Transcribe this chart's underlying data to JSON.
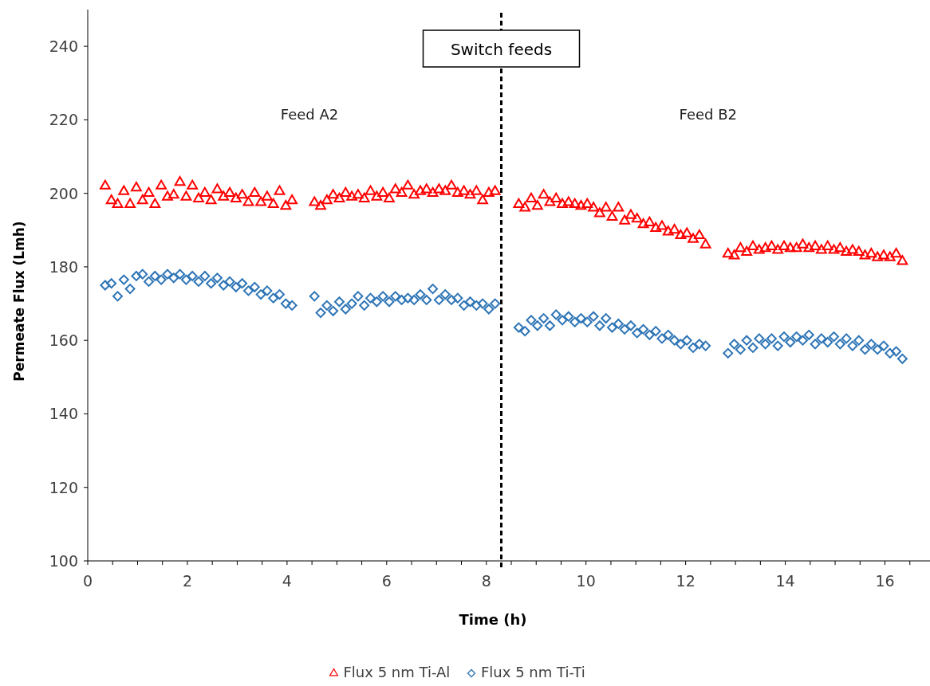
{
  "chart_data": {
    "type": "scatter",
    "xlabel": "Time (h)",
    "ylabel": "Permeate Flux (Lmh)",
    "xlim": [
      0,
      17
    ],
    "ylim": [
      100,
      250
    ],
    "xticks": [
      0,
      {
        "value": 0.5,
        "label": null
      },
      {
        "value": 1,
        "label": null
      },
      {
        "value": 1.5,
        "label": null
      },
      2,
      {
        "value": 2.5,
        "label": null
      },
      {
        "value": 3,
        "label": null
      },
      {
        "value": 3.5,
        "label": null
      },
      4,
      {
        "value": 4.5,
        "label": null
      },
      {
        "value": 5,
        "label": null
      },
      {
        "value": 5.5,
        "label": null
      },
      6,
      {
        "value": 6.5,
        "label": null
      },
      {
        "value": 7,
        "label": null
      },
      {
        "value": 7.5,
        "label": null
      },
      8,
      {
        "value": 8.5,
        "label": null
      },
      {
        "value": 9,
        "label": null
      },
      {
        "value": 9.5,
        "label": null
      },
      10,
      {
        "value": 10.5,
        "label": null
      },
      {
        "value": 11,
        "label": null
      },
      {
        "value": 11.5,
        "label": null
      },
      12,
      {
        "value": 12.5,
        "label": null
      },
      {
        "value": 13,
        "label": null
      },
      {
        "value": 13.5,
        "label": null
      },
      14,
      {
        "value": 14.5,
        "label": null
      },
      {
        "value": 15,
        "label": null
      },
      {
        "value": 15.5,
        "label": null
      },
      16,
      {
        "value": 16.5,
        "label": null
      }
    ],
    "yticks": [
      100,
      120,
      140,
      160,
      180,
      200,
      220,
      240
    ],
    "grid": false,
    "legend": "bottom",
    "x": [
      0.35,
      0.475,
      0.6,
      0.725,
      0.85,
      0.975,
      1.1,
      1.225,
      1.35,
      1.475,
      1.6,
      1.725,
      1.85,
      1.975,
      2.1,
      2.225,
      2.35,
      2.475,
      2.6,
      2.725,
      2.85,
      2.975,
      3.1,
      3.225,
      3.35,
      3.475,
      3.6,
      3.725,
      3.85,
      3.975,
      4.1,
      4.55,
      4.675,
      4.8,
      4.925,
      5.05,
      5.175,
      5.3,
      5.425,
      5.55,
      5.675,
      5.8,
      5.925,
      6.05,
      6.175,
      6.3,
      6.425,
      6.55,
      6.675,
      6.8,
      6.925,
      7.05,
      7.175,
      7.3,
      7.425,
      7.55,
      7.675,
      7.8,
      7.925,
      8.05,
      8.175,
      8.65,
      8.775,
      8.9,
      9.025,
      9.15,
      9.275,
      9.4,
      9.525,
      9.65,
      9.775,
      9.9,
      10.025,
      10.15,
      10.275,
      10.4,
      10.525,
      10.65,
      10.775,
      10.9,
      11.025,
      11.15,
      11.275,
      11.4,
      11.525,
      11.65,
      11.775,
      11.9,
      12.025,
      12.15,
      12.275,
      12.4,
      12.85,
      12.975,
      13.1,
      13.225,
      13.35,
      13.475,
      13.6,
      13.725,
      13.85,
      13.975,
      14.1,
      14.225,
      14.35,
      14.475,
      14.6,
      14.725,
      14.85,
      14.975,
      15.1,
      15.225,
      15.35,
      15.475,
      15.6,
      15.725,
      15.85,
      15.975,
      16.1,
      16.225,
      16.35
    ],
    "series": [
      {
        "name": "Flux 5 nm Ti-Al",
        "color": "#ff0000",
        "marker": "triangle",
        "values": [
          202,
          198,
          197,
          200.5,
          197,
          201.5,
          198,
          200,
          197,
          202,
          199,
          199.5,
          203,
          199,
          202,
          198.5,
          200,
          198,
          201,
          199,
          200,
          198.5,
          199.5,
          197.5,
          200,
          197.5,
          199,
          197,
          200.5,
          196.5,
          198,
          197.5,
          196.5,
          198,
          199.5,
          198.5,
          200,
          199,
          199.5,
          198.5,
          200.5,
          199,
          200,
          198.5,
          201,
          200,
          202,
          199.5,
          200.5,
          201,
          200,
          201,
          200.5,
          202,
          200,
          200.5,
          199.5,
          200.5,
          198,
          200,
          200.5,
          197,
          196,
          198.5,
          196.5,
          199.5,
          197.5,
          198.5,
          197,
          197.5,
          197,
          196.5,
          197,
          196,
          194.5,
          196,
          193.5,
          196,
          192.5,
          194,
          193,
          191.5,
          192,
          190.5,
          191,
          189.5,
          190,
          188.5,
          189,
          187.5,
          188.5,
          186,
          183.5,
          183,
          185,
          184,
          185.5,
          184.5,
          185,
          185.5,
          184.5,
          185.5,
          185,
          185,
          186,
          185,
          185.5,
          184.5,
          185.5,
          184.5,
          185,
          184,
          184.5,
          184,
          183,
          183.5,
          182.5,
          183,
          182.5,
          183.5,
          181.5
        ]
      },
      {
        "name": "Flux 5 nm Ti-Ti",
        "color": "#2e75b6",
        "marker": "diamond",
        "values": [
          175,
          175.5,
          172,
          176.5,
          174,
          177.5,
          178,
          176,
          177.5,
          176.5,
          178,
          177,
          178,
          176.5,
          177.5,
          176,
          177.5,
          175.5,
          177,
          175,
          176,
          174.5,
          175.5,
          173.5,
          174.5,
          172.5,
          173.5,
          171.5,
          172.5,
          170,
          169.5,
          172,
          167.5,
          169.5,
          168,
          170.5,
          168.5,
          170,
          172,
          169.5,
          171.5,
          170.5,
          172,
          170.5,
          172,
          171,
          171.5,
          171,
          172.5,
          171,
          174,
          171,
          172.5,
          171,
          171.5,
          169.5,
          170.5,
          169.5,
          170,
          168.5,
          170,
          163.5,
          162.5,
          165.5,
          164,
          166,
          164,
          167,
          165.5,
          166.5,
          165,
          166,
          165,
          166.5,
          164,
          166,
          163.5,
          164.5,
          163,
          164,
          162,
          163,
          161.5,
          162.5,
          160.5,
          161.5,
          160,
          159,
          160,
          158,
          159,
          158.5,
          156.5,
          159,
          157.5,
          160,
          158,
          160.5,
          159,
          160.5,
          158.5,
          161,
          159.5,
          161,
          160,
          161.5,
          159,
          160.5,
          159.5,
          161,
          159,
          160.5,
          158.5,
          160,
          157.5,
          159,
          157.5,
          158.5,
          156.5,
          157,
          155
        ]
      }
    ],
    "ref_lines": [
      {
        "axis": "x",
        "value": 8.3,
        "label": "Switch feeds",
        "color": "#000000",
        "line_style": "dashed"
      }
    ],
    "annotations": [
      "Feed A2",
      "Feed B2"
    ]
  }
}
